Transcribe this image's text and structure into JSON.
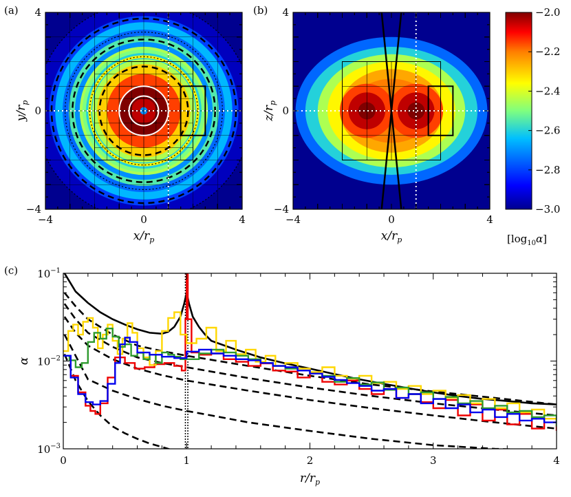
{
  "chart_data": [
    {
      "type": "heatmap",
      "panel_label": "(a)",
      "xlabel": "x/r",
      "xlabel_sub": "p",
      "ylabel": "y/r",
      "ylabel_sub": "p",
      "xlim": [
        -4,
        4
      ],
      "ylim": [
        -4,
        4
      ],
      "xticks": [
        "−4",
        "0",
        "4"
      ],
      "yticks": [
        "−4",
        "0",
        "4"
      ],
      "rings": [
        {
          "r": 0.15,
          "value": -2.7
        },
        {
          "r": 0.5,
          "value": -2.05
        },
        {
          "r": 1.0,
          "value": -2.0
        },
        {
          "r": 1.5,
          "value": -2.15
        },
        {
          "r": 1.9,
          "value": -2.3
        },
        {
          "r": 2.1,
          "value": -2.45
        },
        {
          "r": 2.35,
          "value": -2.6
        },
        {
          "r": 2.55,
          "value": -2.5
        },
        {
          "r": 2.8,
          "value": -2.7
        },
        {
          "r": 3.05,
          "value": -2.55
        },
        {
          "r": 3.3,
          "value": -2.75
        },
        {
          "r": 3.6,
          "value": -2.65
        },
        {
          "r": 3.85,
          "value": -2.8
        },
        {
          "r": 4.4,
          "value": -2.95
        },
        {
          "r": 6.0,
          "value": -3.0
        }
      ]
    },
    {
      "type": "heatmap",
      "panel_label": "(b)",
      "xlabel": "x/r",
      "xlabel_sub": "p",
      "ylabel": "z/r",
      "ylabel_sub": "p",
      "xlim": [
        -4,
        4
      ],
      "ylim": [
        -4,
        4
      ],
      "xticks": [
        "−4",
        "0",
        "4"
      ],
      "yticks": [
        "−4",
        "0",
        "4"
      ]
    },
    {
      "type": "colorbar",
      "ticks": [
        "−2.0",
        "−2.2",
        "−2.4",
        "−2.6",
        "−2.8",
        "−3.0"
      ],
      "values": [
        -2.0,
        -2.2,
        -2.4,
        -2.6,
        -2.8,
        -3.0
      ],
      "range": [
        -3.0,
        -2.0
      ],
      "label": "[log",
      "label_sub": "10",
      "label_var": "α",
      "label_close": "]",
      "colors": [
        "#00008f",
        "#0000ff",
        "#00bfff",
        "#7fff7f",
        "#ffff00",
        "#ff7f00",
        "#ff0000",
        "#800000"
      ]
    },
    {
      "type": "line",
      "panel_label": "(c)",
      "xlabel": "r/r",
      "xlabel_sub": "p",
      "ylabel": "α",
      "xlim": [
        0,
        4
      ],
      "ylim": [
        0.001,
        0.1
      ],
      "yscale": "log",
      "xticks": [
        "0",
        "1",
        "2",
        "3",
        "4"
      ],
      "yticks": [
        {
          "mant": "10",
          "exp": "−1"
        },
        {
          "mant": "10",
          "exp": "−2"
        },
        {
          "mant": "10",
          "exp": "−3"
        }
      ],
      "series": [
        {
          "name": "red",
          "color": "#ee0000",
          "x": [
            0,
            0.06,
            0.12,
            0.18,
            0.22,
            0.26,
            0.3,
            0.36,
            0.42,
            0.5,
            0.58,
            0.66,
            0.74,
            0.82,
            0.9,
            0.96,
            0.99,
            1.0,
            1.01,
            1.04,
            1.1,
            1.2,
            1.3,
            1.4,
            1.5,
            1.6,
            1.7,
            1.8,
            1.9,
            2.0,
            2.1,
            2.2,
            2.3,
            2.4,
            2.5,
            2.6,
            2.7,
            2.8,
            2.9,
            3.0,
            3.1,
            3.2,
            3.3,
            3.4,
            3.5,
            3.6,
            3.7,
            3.8,
            3.9,
            4.0
          ],
          "y": [
            0.0115,
            0.0068,
            0.0044,
            0.0031,
            0.0027,
            0.0025,
            0.0033,
            0.0065,
            0.011,
            0.0095,
            0.0082,
            0.0085,
            0.0092,
            0.0095,
            0.0088,
            0.0078,
            0.03,
            0.1,
            0.03,
            0.0125,
            0.0118,
            0.0122,
            0.0105,
            0.0098,
            0.0088,
            0.0094,
            0.0078,
            0.0076,
            0.0065,
            0.0072,
            0.0058,
            0.0054,
            0.006,
            0.0048,
            0.0042,
            0.0048,
            0.0038,
            0.0042,
            0.0034,
            0.0029,
            0.0036,
            0.0024,
            0.0032,
            0.0021,
            0.0028,
            0.0019,
            0.0025,
            0.0017,
            0.0022,
            0.0016
          ]
        },
        {
          "name": "yellow",
          "color": "#ffd700",
          "x": [
            0,
            0.04,
            0.08,
            0.12,
            0.16,
            0.2,
            0.24,
            0.28,
            0.32,
            0.36,
            0.4,
            0.44,
            0.48,
            0.52,
            0.56,
            0.6,
            0.65,
            0.7,
            0.75,
            0.8,
            0.85,
            0.9,
            0.95,
            1.0,
            1.08,
            1.16,
            1.24,
            1.32,
            1.4,
            1.48,
            1.56,
            1.64,
            1.72,
            1.8,
            1.9,
            2.0,
            2.1,
            2.2,
            2.3,
            2.4,
            2.5,
            2.6,
            2.7,
            2.8,
            2.9,
            3.0,
            3.1,
            3.2,
            3.3,
            3.4,
            3.5,
            3.6,
            3.7,
            3.8,
            3.9,
            4.0
          ],
          "y": [
            0.013,
            0.022,
            0.026,
            0.02,
            0.028,
            0.031,
            0.024,
            0.014,
            0.02,
            0.026,
            0.017,
            0.012,
            0.018,
            0.027,
            0.021,
            0.014,
            0.011,
            0.009,
            0.013,
            0.022,
            0.031,
            0.036,
            0.02,
            0.016,
            0.018,
            0.024,
            0.013,
            0.017,
            0.012,
            0.0135,
            0.0098,
            0.0115,
            0.0088,
            0.0095,
            0.0082,
            0.0075,
            0.0085,
            0.0068,
            0.0063,
            0.0068,
            0.0056,
            0.0058,
            0.0048,
            0.0052,
            0.0042,
            0.0046,
            0.0038,
            0.0041,
            0.0033,
            0.0037,
            0.0029,
            0.0033,
            0.0026,
            0.0028,
            0.0022,
            0.0022
          ]
        },
        {
          "name": "green",
          "color": "#2e9b2e",
          "x": [
            0,
            0.05,
            0.1,
            0.15,
            0.2,
            0.25,
            0.3,
            0.35,
            0.4,
            0.45,
            0.5,
            0.55,
            0.6,
            0.65,
            0.7,
            0.75,
            0.8,
            0.85,
            0.9,
            0.95,
            1.0,
            1.1,
            1.2,
            1.3,
            1.4,
            1.5,
            1.6,
            1.7,
            1.8,
            1.9,
            2.0,
            2.1,
            2.2,
            2.3,
            2.4,
            2.5,
            2.6,
            2.7,
            2.8,
            2.9,
            3.0,
            3.1,
            3.2,
            3.3,
            3.4,
            3.5,
            3.6,
            3.7,
            3.8,
            3.9,
            4.0
          ],
          "y": [
            0.0115,
            0.0102,
            0.0085,
            0.0095,
            0.0165,
            0.021,
            0.018,
            0.0235,
            0.019,
            0.0145,
            0.0155,
            0.0115,
            0.0124,
            0.0105,
            0.0118,
            0.0095,
            0.0125,
            0.0118,
            0.0112,
            0.0105,
            0.0105,
            0.0122,
            0.0135,
            0.0125,
            0.0115,
            0.0105,
            0.0095,
            0.0088,
            0.0082,
            0.0078,
            0.0072,
            0.0068,
            0.0058,
            0.0064,
            0.0054,
            0.0057,
            0.0047,
            0.005,
            0.0042,
            0.0044,
            0.0037,
            0.0039,
            0.0033,
            0.0035,
            0.0029,
            0.0031,
            0.0026,
            0.0027,
            0.0023,
            0.0024,
            0.0018
          ]
        },
        {
          "name": "blue",
          "color": "#0000ee",
          "x": [
            0,
            0.06,
            0.12,
            0.18,
            0.24,
            0.3,
            0.36,
            0.42,
            0.46,
            0.5,
            0.54,
            0.6,
            0.7,
            0.8,
            0.9,
            1.0,
            1.1,
            1.2,
            1.3,
            1.4,
            1.5,
            1.6,
            1.7,
            1.8,
            1.9,
            2.0,
            2.1,
            2.2,
            2.3,
            2.4,
            2.5,
            2.6,
            2.7,
            2.8,
            2.9,
            3.0,
            3.1,
            3.2,
            3.3,
            3.4,
            3.5,
            3.6,
            3.7,
            3.8,
            3.9,
            4.0
          ],
          "y": [
            0.0115,
            0.0065,
            0.0042,
            0.0034,
            0.0032,
            0.0035,
            0.0055,
            0.0095,
            0.0155,
            0.0185,
            0.0165,
            0.0125,
            0.0118,
            0.0112,
            0.0108,
            0.0128,
            0.0135,
            0.0122,
            0.0115,
            0.0105,
            0.0102,
            0.0095,
            0.0088,
            0.0085,
            0.0078,
            0.0072,
            0.0066,
            0.0061,
            0.0056,
            0.0052,
            0.0046,
            0.0048,
            0.0038,
            0.0042,
            0.0033,
            0.0037,
            0.0029,
            0.0032,
            0.0026,
            0.0028,
            0.0023,
            0.0025,
            0.0021,
            0.0022,
            0.002,
            0.002
          ]
        },
        {
          "name": "solid-black",
          "color": "#000000",
          "dash": "none",
          "formula": "a(r)=0.0035*(4/r)^0.8 with peak near r=1",
          "x": [
            0.01,
            0.1,
            0.2,
            0.3,
            0.4,
            0.5,
            0.6,
            0.7,
            0.8,
            0.85,
            0.9,
            0.95,
            0.98,
            1.0,
            1.02,
            1.05,
            1.1,
            1.15,
            1.2,
            1.4,
            1.6,
            1.8,
            2.0,
            2.2,
            2.4,
            2.6,
            2.8,
            3.0,
            3.2,
            3.4,
            3.6,
            3.8,
            4.0
          ],
          "y": [
            0.1,
            0.062,
            0.046,
            0.036,
            0.03,
            0.026,
            0.023,
            0.021,
            0.0205,
            0.0215,
            0.0245,
            0.032,
            0.045,
            0.06,
            0.045,
            0.032,
            0.0245,
            0.02,
            0.017,
            0.0135,
            0.011,
            0.0094,
            0.0082,
            0.0071,
            0.0062,
            0.0055,
            0.0049,
            0.0044,
            0.004,
            0.0037,
            0.0035,
            0.0033,
            0.0032
          ]
        },
        {
          "name": "dashed-1",
          "color": "#000000",
          "dash": "10,6",
          "x": [
            0.01,
            0.1,
            0.2,
            0.4,
            0.6,
            0.8,
            1.0,
            1.5,
            2.0,
            2.5,
            3.0,
            3.5,
            4.0
          ],
          "y": [
            0.06,
            0.042,
            0.03,
            0.02,
            0.015,
            0.013,
            0.0115,
            0.0088,
            0.0068,
            0.0054,
            0.0045,
            0.0038,
            0.0032
          ]
        },
        {
          "name": "dashed-2",
          "color": "#000000",
          "dash": "10,6",
          "x": [
            0.01,
            0.1,
            0.2,
            0.4,
            0.6,
            0.8,
            1.0,
            1.5,
            2.0,
            2.5,
            3.0,
            3.5,
            4.0
          ],
          "y": [
            0.045,
            0.03,
            0.021,
            0.0145,
            0.011,
            0.0095,
            0.0085,
            0.0064,
            0.005,
            0.004,
            0.0033,
            0.0028,
            0.0024
          ]
        },
        {
          "name": "dashed-3",
          "color": "#000000",
          "dash": "10,6",
          "x": [
            0.01,
            0.1,
            0.2,
            0.4,
            0.6,
            0.8,
            1.0,
            1.5,
            2.0,
            2.5,
            3.0,
            3.5,
            4.0
          ],
          "y": [
            0.032,
            0.021,
            0.015,
            0.0105,
            0.0082,
            0.0069,
            0.006,
            0.0046,
            0.0036,
            0.0029,
            0.0024,
            0.002,
            0.0017
          ]
        },
        {
          "name": "dashed-4",
          "color": "#000000",
          "dash": "10,6",
          "x": [
            0.01,
            0.2,
            0.4,
            0.6,
            0.8,
            1.0,
            1.2,
            1.5,
            2.0,
            2.5,
            3.0,
            3.5,
            4.0
          ],
          "y": [
            0.02,
            0.0062,
            0.0046,
            0.0037,
            0.0031,
            0.0027,
            0.0024,
            0.002,
            0.0016,
            0.0013,
            0.0011,
            0.001,
            0.00095
          ]
        },
        {
          "name": "dashed-5",
          "color": "#000000",
          "dash": "10,6",
          "x": [
            0.01,
            0.1,
            0.2,
            0.3,
            0.4,
            0.5,
            0.6,
            0.7,
            0.8,
            0.85,
            0.9
          ],
          "y": [
            0.012,
            0.006,
            0.0035,
            0.0024,
            0.0018,
            0.0015,
            0.0013,
            0.00115,
            0.00105,
            0.001,
            0.00095
          ]
        }
      ],
      "vlines": [
        {
          "x": 0.99,
          "style": "dotted"
        },
        {
          "x": 1.01,
          "style": "dotted"
        }
      ]
    }
  ]
}
